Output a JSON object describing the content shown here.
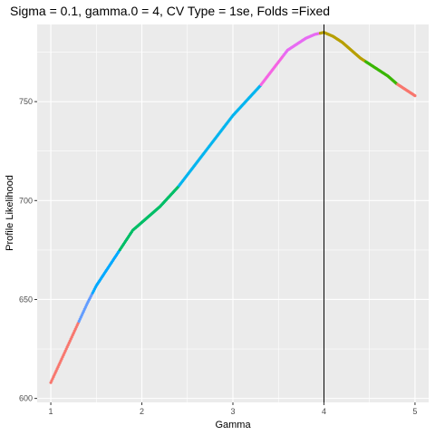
{
  "chart_data": {
    "type": "scatter",
    "title": "Sigma = 0.1, gamma.0 = 4, CV Type = 1se, Folds =Fixed",
    "xlabel": "Gamma",
    "ylabel": "Profile Likelihood",
    "xlim": [
      0.85,
      5.15
    ],
    "ylim": [
      598,
      789
    ],
    "x_ticks": [
      1,
      2,
      3,
      4,
      5
    ],
    "y_ticks": [
      600,
      650,
      700,
      750
    ],
    "grid": true,
    "panel_background": "#ebebeb",
    "grid_color": "#ffffff",
    "vline": {
      "x": 4.0,
      "color": "#000000"
    },
    "curve_knots": {
      "x": [
        1.0,
        1.1,
        1.2,
        1.3,
        1.4,
        1.5,
        1.6,
        1.7,
        1.8,
        1.9,
        2.0,
        2.1,
        2.2,
        2.3,
        2.4,
        2.5,
        2.6,
        2.7,
        2.8,
        2.9,
        3.0,
        3.1,
        3.2,
        3.3,
        3.4,
        3.5,
        3.6,
        3.7,
        3.8,
        3.9,
        4.0,
        4.1,
        4.2,
        4.3,
        4.4,
        4.5,
        4.6,
        4.7,
        4.8,
        4.9,
        5.0
      ],
      "y": [
        608,
        618,
        628,
        638,
        648,
        657,
        664,
        671,
        678,
        685,
        689,
        693,
        697,
        702,
        707,
        713,
        719,
        725,
        731,
        737,
        743,
        748,
        753,
        758,
        764,
        770,
        776,
        779,
        782,
        784,
        785,
        783,
        780,
        776,
        772,
        769,
        766,
        763,
        759,
        756,
        753
      ]
    },
    "series": [
      {
        "x_range": [
          1.0,
          1.3
        ],
        "color": "#f8766d"
      },
      {
        "x_range": [
          1.3,
          1.45
        ],
        "color": "#619cff"
      },
      {
        "x_range": [
          1.45,
          1.75
        ],
        "color": "#00a9ff"
      },
      {
        "x_range": [
          1.75,
          2.4
        ],
        "color": "#00be67"
      },
      {
        "x_range": [
          2.4,
          3.3
        ],
        "color": "#00b4ef"
      },
      {
        "x_range": [
          3.3,
          3.55
        ],
        "color": "#f564e3"
      },
      {
        "x_range": [
          3.55,
          3.95
        ],
        "color": "#e76bf3"
      },
      {
        "x_range": [
          3.95,
          4.45
        ],
        "color": "#b79f00"
      },
      {
        "x_range": [
          4.45,
          4.8
        ],
        "color": "#39b600"
      },
      {
        "x_range": [
          4.8,
          5.0
        ],
        "color": "#f8766d"
      }
    ]
  }
}
